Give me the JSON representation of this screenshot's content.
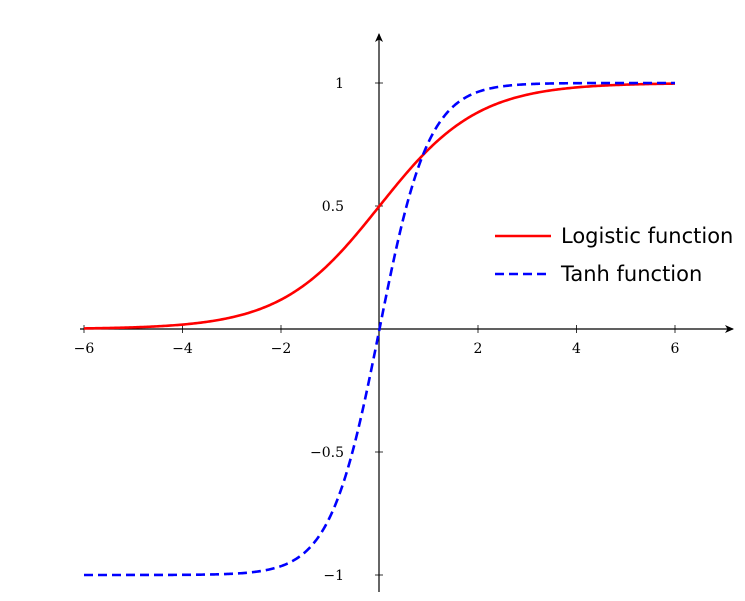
{
  "chart_data": {
    "type": "line",
    "title": "",
    "xlabel": "",
    "ylabel": "",
    "xlim": [
      -6,
      6
    ],
    "ylim": [
      -1,
      1
    ],
    "x_ticks": [
      -6,
      -4,
      -2,
      2,
      4,
      6
    ],
    "x_tick_labels": [
      "−6",
      "−4",
      "−2",
      "2",
      "4",
      "6"
    ],
    "y_ticks": [
      1,
      0.5,
      -0.5,
      -1
    ],
    "y_tick_labels": [
      "1",
      "0.5",
      "−0.5",
      "−1"
    ],
    "grid": false,
    "legend_position": "right",
    "series": [
      {
        "name": "Logistic function",
        "function": "1/(1+exp(-x))",
        "color": "#ff0000",
        "line_style": "solid",
        "x": [
          -6,
          -5,
          -4,
          -3,
          -2,
          -1,
          0,
          1,
          2,
          3,
          4,
          5,
          6
        ],
        "y": [
          0.002,
          0.007,
          0.018,
          0.047,
          0.119,
          0.269,
          0.5,
          0.731,
          0.881,
          0.953,
          0.982,
          0.993,
          0.998
        ]
      },
      {
        "name": "Tanh function",
        "function": "tanh(x)",
        "color": "#0000ff",
        "line_style": "dashed",
        "x": [
          -6,
          -5,
          -4,
          -3,
          -2,
          -1,
          0,
          1,
          2,
          3,
          4,
          5,
          6
        ],
        "y": [
          -1.0,
          -1.0,
          -0.999,
          -0.995,
          -0.964,
          -0.762,
          0.0,
          0.762,
          0.964,
          0.995,
          0.999,
          1.0,
          1.0
        ]
      }
    ]
  }
}
